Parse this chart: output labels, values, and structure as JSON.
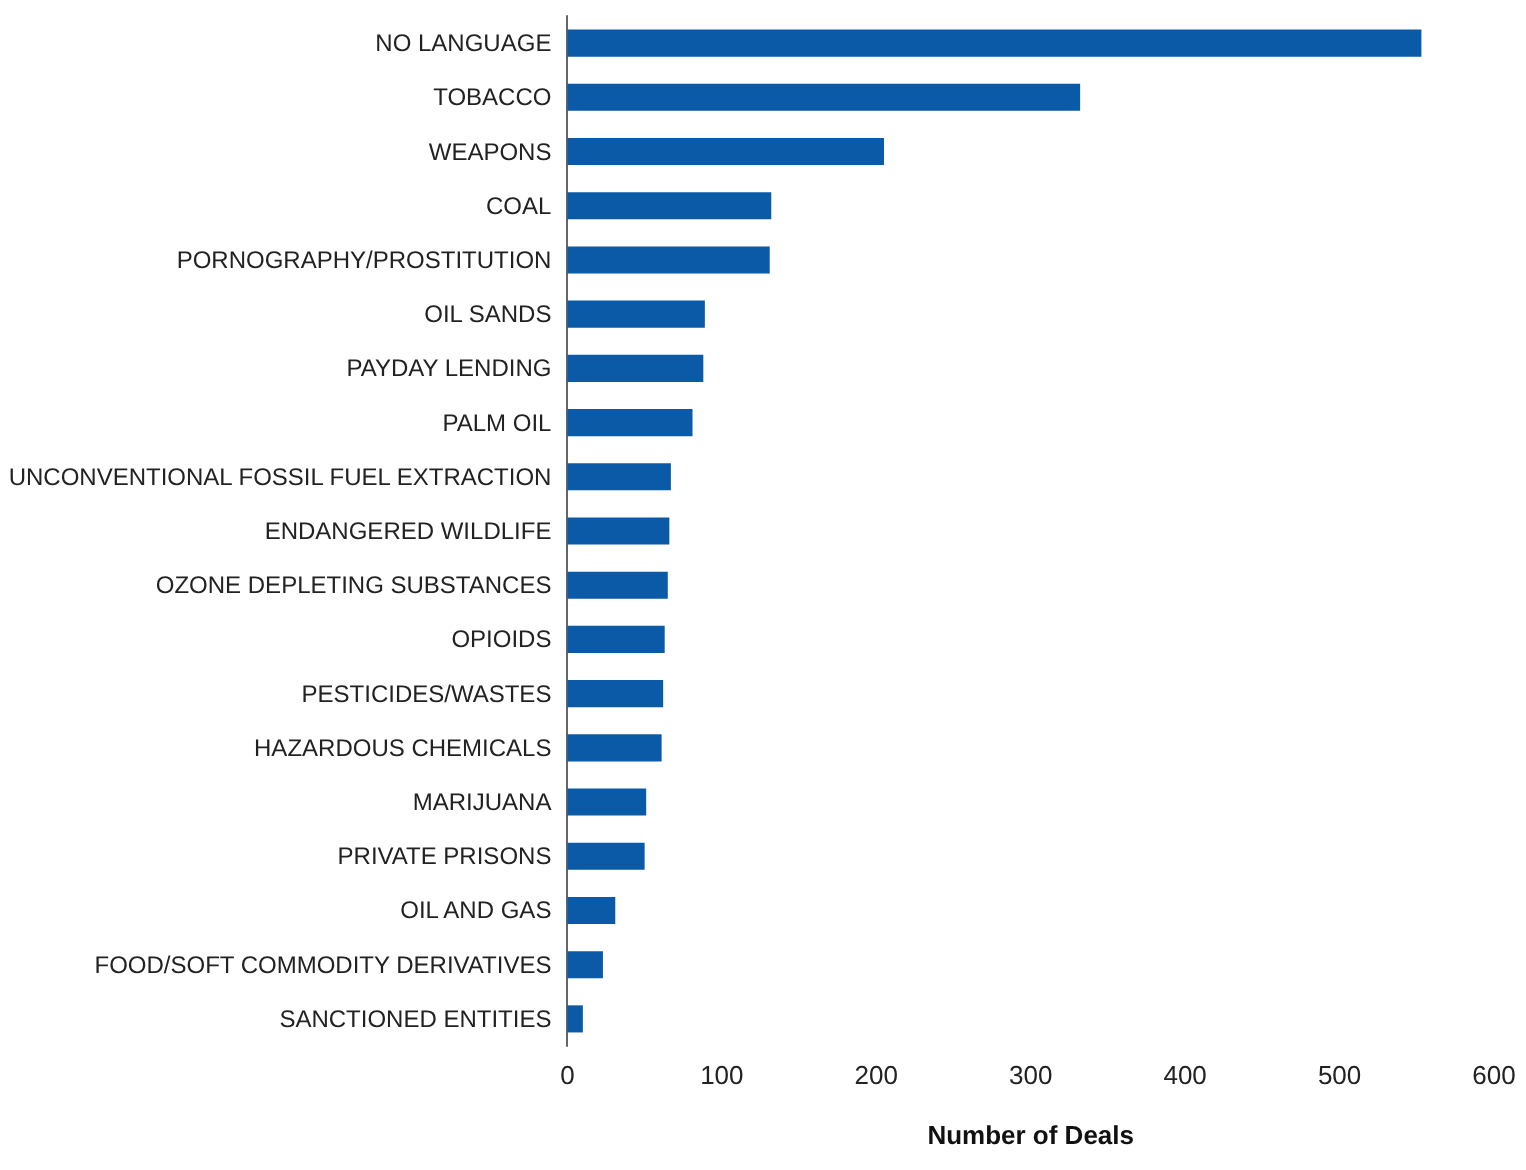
{
  "chart_data": {
    "type": "bar",
    "orientation": "horizontal",
    "xlabel": "Number of Deals",
    "categories": [
      "NO LANGUAGE",
      "TOBACCO",
      "WEAPONS",
      "COAL",
      "PORNOGRAPHY/PROSTITUTION",
      "OIL SANDS",
      "PAYDAY LENDING",
      "PALM OIL",
      "UNCONVENTIONAL FOSSIL FUEL EXTRACTION",
      "ENDANGERED WILDLIFE",
      "OZONE DEPLETING SUBSTANCES",
      "OPIOIDS",
      "PESTICIDES/WASTES",
      "HAZARDOUS CHEMICALS",
      "MARIJUANA",
      "PRIVATE PRISONS",
      "OIL AND GAS",
      "FOOD/SOFT COMMODITY DERIVATIVES",
      "SANCTIONED ENTITIES"
    ],
    "values": [
      553,
      332,
      205,
      132,
      131,
      89,
      88,
      81,
      67,
      66,
      65,
      63,
      62,
      61,
      51,
      50,
      31,
      23,
      10
    ],
    "color": "#0b5aa8",
    "xlim": [
      0,
      600
    ],
    "xticks": [
      0,
      100,
      200,
      300,
      400,
      500,
      600
    ],
    "grid": false
  }
}
